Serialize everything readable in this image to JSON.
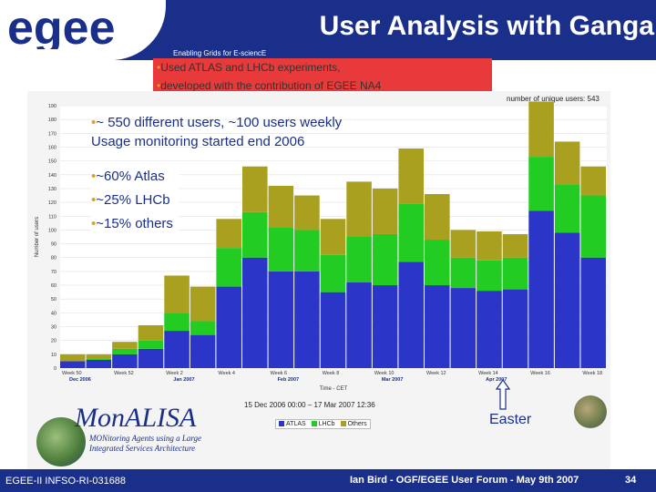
{
  "header": {
    "logo_text": "egee",
    "tagline": "Enabling Grids for E-sciencE",
    "title": "User Analysis with Ganga"
  },
  "intro": {
    "line1": "Used ATLAS and LHCb experiments,",
    "line2": "developed with the contribution of EGEE NA4",
    "bullet": "•"
  },
  "notes": {
    "users_line1": "~ 550 different users, ~100 users weekly",
    "users_line2": "Usage monitoring started end 2006",
    "share_atlas": "~60% Atlas",
    "share_lhcb": "~25% LHCb",
    "share_others": "~15% others"
  },
  "monalisa": {
    "name": "MonALISA",
    "sub1": "MONitoring Agents using a Large",
    "sub2": "Integrated Services Architecture"
  },
  "chart_meta": {
    "unique_users": "number of unique users: 543",
    "timestamp": "15 Dec 2006 00:00 – 17 Mar 2007 12:36"
  },
  "easter": "Easter",
  "footer": {
    "left": "EGEE-II INFSO-RI-031688",
    "middle": "Ian Bird - OGF/EGEE User Forum - May 9th 2007",
    "page": "34"
  },
  "colors": {
    "atlas": "#2b35c8",
    "lhcb": "#22cc22",
    "others": "#aaa020",
    "header": "#1a2f8a"
  },
  "chart_data": {
    "type": "bar",
    "stacked": true,
    "title": "",
    "xlabel": "Time - CET",
    "ylabel": "Number of users",
    "ylim": [
      0,
      190
    ],
    "yticks": [
      0,
      10,
      20,
      30,
      40,
      50,
      60,
      70,
      80,
      90,
      100,
      110,
      120,
      130,
      140,
      150,
      160,
      170,
      180,
      190
    ],
    "x_tick_labels": [
      {
        "index": 0,
        "label": "Week 50",
        "sub": "Dec 2006"
      },
      {
        "index": 2,
        "label": "Week 52",
        "sub": ""
      },
      {
        "index": 4,
        "label": "Week 2",
        "sub": "Jan 2007"
      },
      {
        "index": 6,
        "label": "Week 4",
        "sub": ""
      },
      {
        "index": 8,
        "label": "Week 6",
        "sub": "Feb 2007"
      },
      {
        "index": 10,
        "label": "Week 8",
        "sub": ""
      },
      {
        "index": 12,
        "label": "Week 10",
        "sub": "Mar 2007"
      },
      {
        "index": 14,
        "label": "Week 12",
        "sub": ""
      },
      {
        "index": 16,
        "label": "Week 14",
        "sub": "Apr 2007"
      },
      {
        "index": 18,
        "label": "Week 16",
        "sub": ""
      },
      {
        "index": 20,
        "label": "Week 18",
        "sub": ""
      }
    ],
    "series": [
      {
        "name": "ATLAS",
        "values": [
          5,
          6,
          10,
          14,
          27,
          24,
          59,
          80,
          70,
          70,
          55,
          62,
          60,
          77,
          60,
          58,
          56,
          57,
          114,
          98,
          80
        ]
      },
      {
        "name": "LHCb",
        "values": [
          0,
          1,
          4,
          6,
          13,
          10,
          28,
          33,
          32,
          30,
          27,
          33,
          37,
          42,
          33,
          22,
          22,
          23,
          39,
          35,
          45
        ]
      },
      {
        "name": "Others",
        "values": [
          5,
          3,
          5,
          11,
          27,
          25,
          21,
          33,
          30,
          25,
          26,
          40,
          33,
          40,
          33,
          20,
          21,
          17,
          40,
          31,
          21
        ]
      }
    ],
    "legend": "bottom"
  }
}
